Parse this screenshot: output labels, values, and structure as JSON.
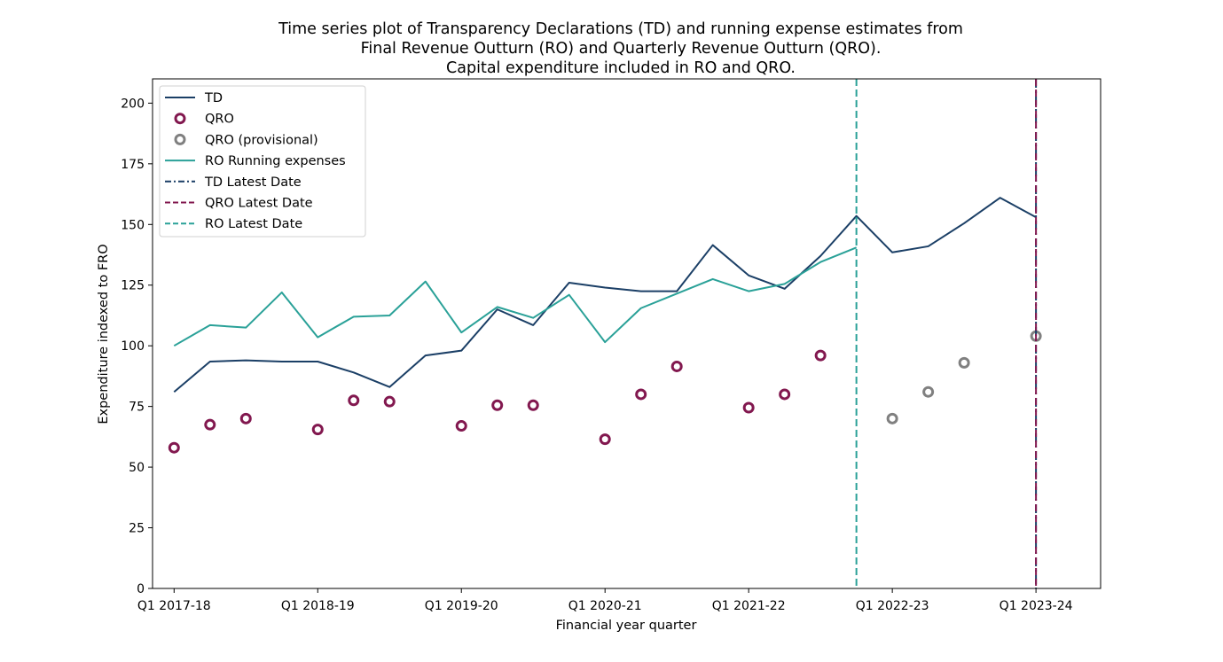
{
  "chart_data": {
    "type": "line",
    "title": [
      "Time series plot of Transparency Declarations (TD) and running expense estimates from",
      "Final Revenue Outturn (RO) and Quarterly Revenue Outturn (QRO).",
      "Capital expenditure included in RO and QRO."
    ],
    "xlabel": "Financial year quarter",
    "ylabel": "Expenditure indexed to FRO",
    "ylim": [
      0,
      210
    ],
    "xlim": [
      -0.6,
      25.8
    ],
    "yticks": [
      0,
      25,
      50,
      75,
      100,
      125,
      150,
      175,
      200
    ],
    "xticks": [
      {
        "x": 0,
        "label": "Q1 2017-18"
      },
      {
        "x": 4,
        "label": "Q1 2018-19"
      },
      {
        "x": 8,
        "label": "Q1 2019-20"
      },
      {
        "x": 12,
        "label": "Q1 2020-21"
      },
      {
        "x": 16,
        "label": "Q1 2021-22"
      },
      {
        "x": 20,
        "label": "Q1 2022-23"
      },
      {
        "x": 24,
        "label": "Q1 2023-24"
      }
    ],
    "grid": false,
    "legend_position": "top-left",
    "series": [
      {
        "name": "TD",
        "kind": "line",
        "color": "#1b3f66",
        "x": [
          0,
          1,
          2,
          3,
          4,
          5,
          6,
          7,
          8,
          9,
          10,
          11,
          12,
          13,
          14,
          15,
          16,
          17,
          18,
          19,
          20,
          21,
          22,
          23,
          24
        ],
        "y": [
          81,
          93.5,
          94,
          93.5,
          93.5,
          89,
          83,
          96,
          98,
          115,
          108.5,
          126,
          124,
          122.5,
          122.5,
          141.5,
          129,
          123.5,
          137,
          153.5,
          138.5,
          141,
          150.5,
          161,
          153
        ]
      },
      {
        "name": "QRO",
        "kind": "scatter",
        "color": "#82184f",
        "x": [
          0,
          1,
          2,
          4,
          5,
          6,
          8,
          9,
          10,
          12,
          13,
          14,
          16,
          17,
          18
        ],
        "y": [
          58,
          67.5,
          70,
          65.5,
          77.5,
          77,
          67,
          75.5,
          75.5,
          61.5,
          80,
          91.5,
          74.5,
          80,
          96
        ]
      },
      {
        "name": "QRO (provisional)",
        "kind": "scatter",
        "color": "#808080",
        "x": [
          20,
          21,
          22,
          24
        ],
        "y": [
          70,
          81,
          93,
          104
        ]
      },
      {
        "name": "RO Running expenses",
        "kind": "line",
        "color": "#2aa198",
        "x": [
          0,
          1,
          2,
          3,
          4,
          5,
          6,
          7,
          8,
          9,
          10,
          11,
          12,
          13,
          14,
          15,
          16,
          17,
          18,
          19
        ],
        "y": [
          100,
          108.5,
          107.5,
          122,
          103.5,
          112,
          112.5,
          126.5,
          105.5,
          116,
          111.5,
          121,
          101.5,
          115.5,
          121.5,
          127.5,
          122.5,
          125.5,
          134.5,
          140.5
        ]
      },
      {
        "name": "TD Latest Date",
        "kind": "vline",
        "style": "dashdot",
        "color": "#1b3f66",
        "x": 24
      },
      {
        "name": "QRO Latest Date",
        "kind": "vline",
        "style": "dashed",
        "color": "#82184f",
        "x": 24
      },
      {
        "name": "RO Latest Date",
        "kind": "vline",
        "style": "dashed",
        "color": "#2aa198",
        "x": 19
      }
    ]
  }
}
